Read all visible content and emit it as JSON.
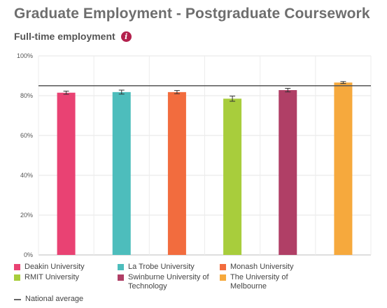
{
  "header": {
    "title": "Graduate Employment - Postgraduate Coursework",
    "subtitle": "Full-time employment",
    "info_icon": "info-icon"
  },
  "chart_data": {
    "type": "bar",
    "title": "",
    "xlabel": "",
    "ylabel": "",
    "ylim": [
      0,
      100
    ],
    "yticks": [
      0,
      20,
      40,
      60,
      80,
      100
    ],
    "ytick_labels": [
      "0%",
      "20%",
      "40%",
      "60%",
      "80%",
      "100%"
    ],
    "grid": true,
    "legend_placement": "bottom",
    "categories": [
      "Deakin University",
      "La Trobe University",
      "Monash University",
      "RMIT University",
      "Swinburne University of Technology",
      "The University of Melbourne"
    ],
    "values": [
      81.5,
      81.8,
      81.8,
      78.5,
      82.8,
      86.6
    ],
    "error_low": [
      80.7,
      80.8,
      81.0,
      77.2,
      81.9,
      86.1
    ],
    "error_high": [
      82.3,
      82.8,
      82.6,
      79.8,
      83.7,
      87.1
    ],
    "colors": [
      "#e94273",
      "#4dbdbc",
      "#f26c3e",
      "#a8cd3c",
      "#b03f66",
      "#f6a93d"
    ],
    "national_average": 85.0,
    "national_average_label": "National average"
  }
}
